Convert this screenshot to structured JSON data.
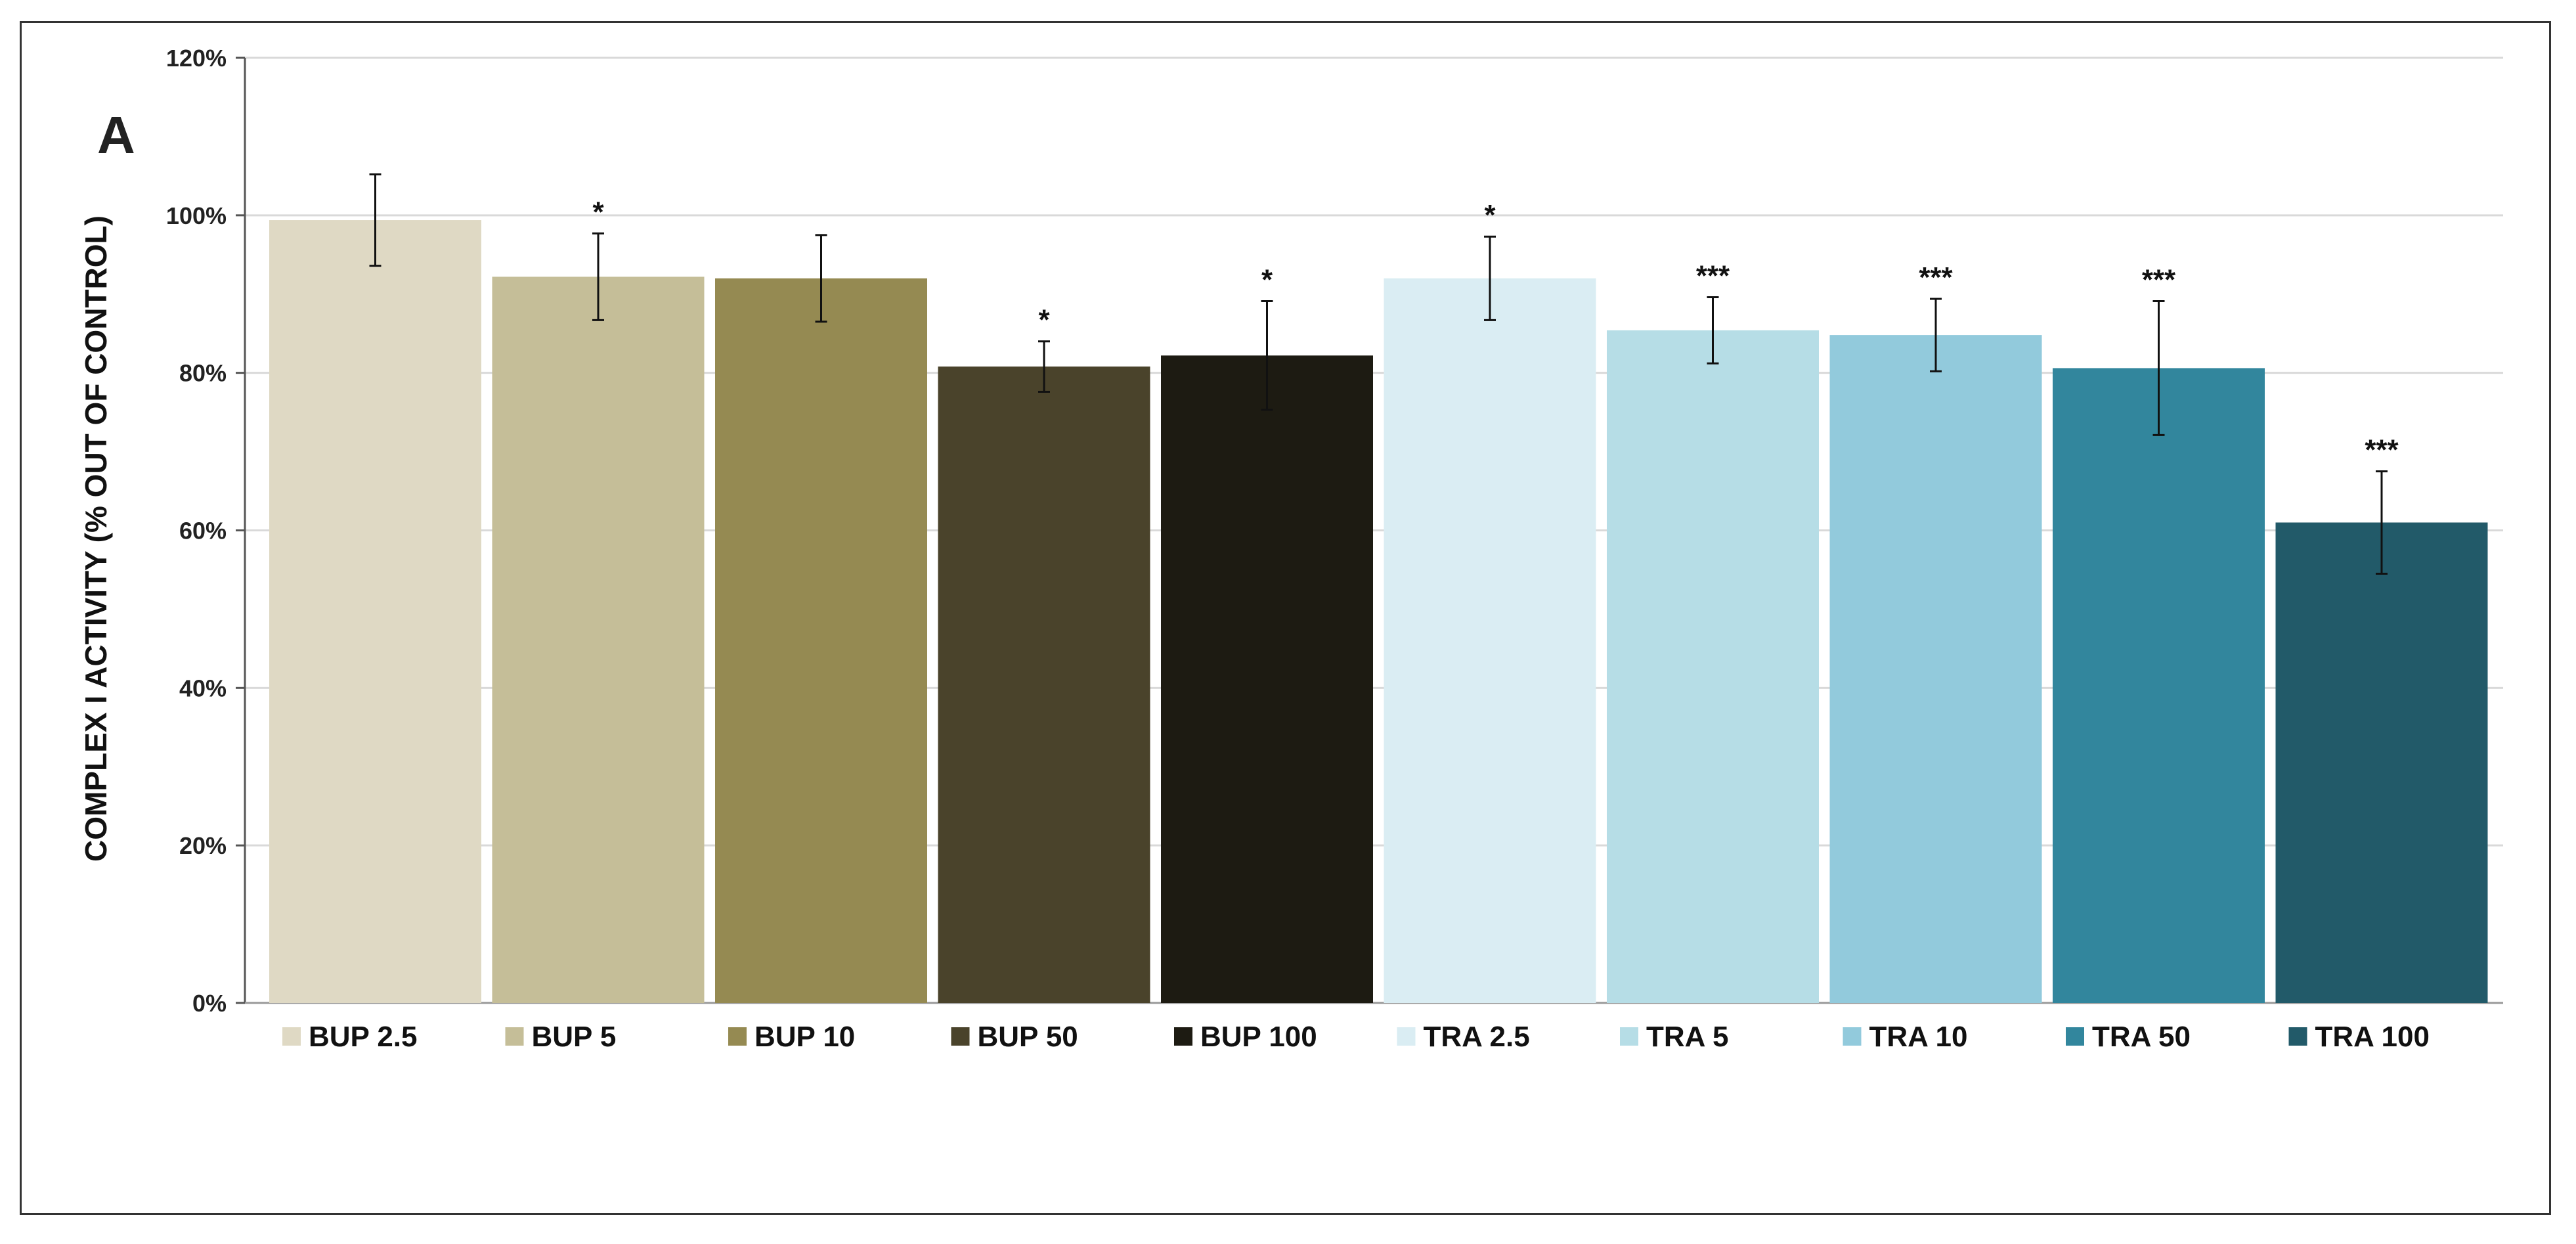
{
  "panel_label": "A",
  "chart_data": {
    "type": "bar",
    "title": "",
    "xlabel": "",
    "ylabel": "COMPLEX I ACTIVITY (% OUT OF CONTROL)",
    "ylim": [
      0,
      120
    ],
    "yticks": [
      0,
      20,
      40,
      60,
      80,
      100,
      120
    ],
    "ytick_labels": [
      "0%",
      "20%",
      "40%",
      "60%",
      "80%",
      "100%",
      "120%"
    ],
    "grid": true,
    "legend_position": "bottom",
    "categories": [
      "BUP 2.5",
      "BUP 5",
      "BUP 10",
      "BUP 50",
      "BUP 100",
      "TRA 2.5",
      "TRA 5",
      "TRA 10",
      "TRA 50",
      "TRA 100"
    ],
    "values": [
      99.4,
      92.2,
      92.0,
      80.8,
      82.2,
      92.0,
      85.4,
      84.8,
      80.6,
      61.0
    ],
    "errors": [
      5.8,
      5.5,
      5.5,
      3.2,
      6.9,
      5.3,
      4.2,
      4.6,
      8.5,
      6.5
    ],
    "significance": [
      "",
      "*",
      "",
      "*",
      "*",
      "*",
      "***",
      "***",
      "***",
      "***"
    ],
    "colors": [
      "#DFD9C4",
      "#C5BE98",
      "#958A52",
      "#4A432B",
      "#1D1B12",
      "#DAEDF3",
      "#B6DDE6",
      "#92CADC",
      "#32869D",
      "#225A69"
    ]
  }
}
